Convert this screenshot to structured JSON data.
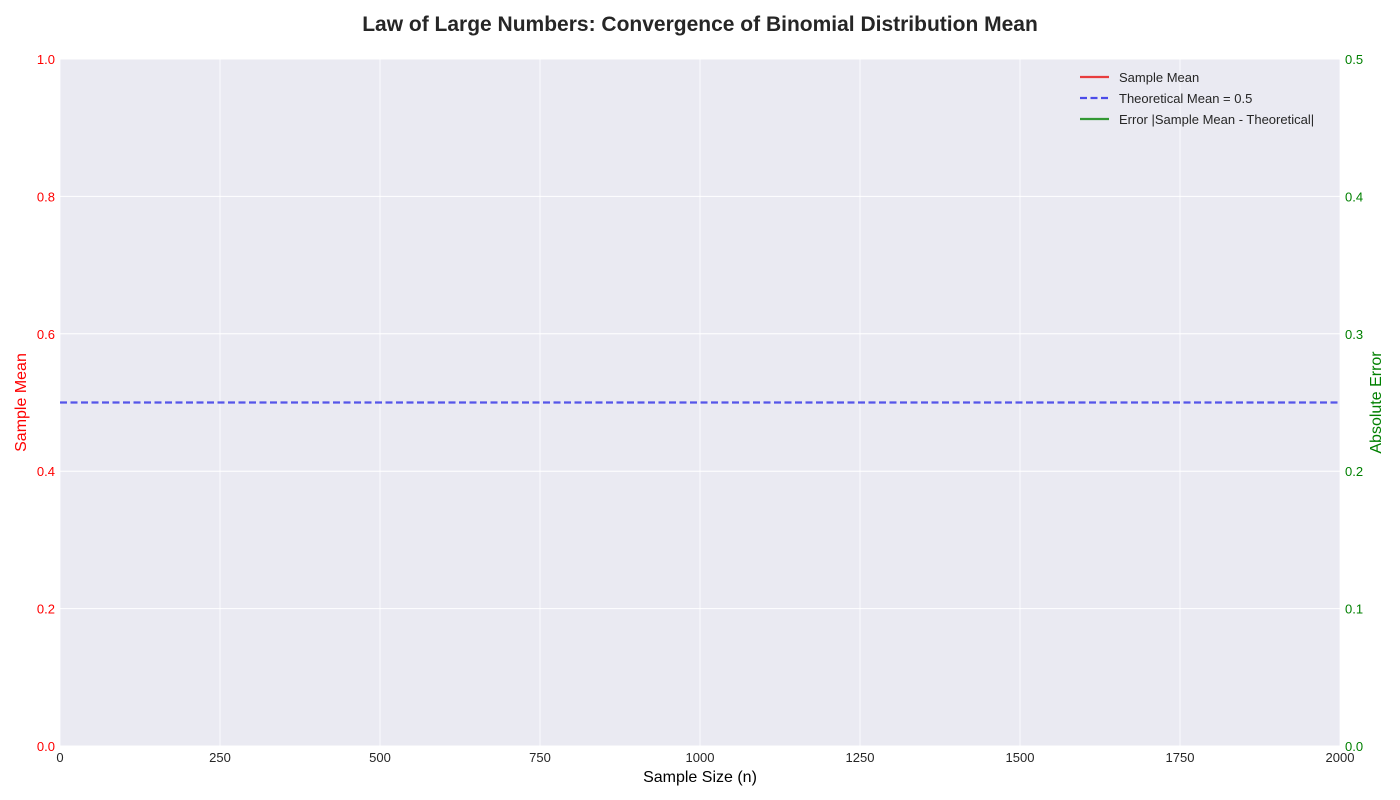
{
  "chart_data": {
    "type": "line",
    "title": "Law of Large Numbers: Convergence of Binomial Distribution Mean",
    "xlabel": "Sample Size (n)",
    "ylabel": "Sample Mean",
    "y2label": "Absolute Error",
    "xlim": [
      0,
      2000
    ],
    "ylim": [
      0,
      1.0
    ],
    "y2lim": [
      0,
      0.5
    ],
    "xticks": [
      "0",
      "250",
      "500",
      "750",
      "1000",
      "1250",
      "1500",
      "1750",
      "2000"
    ],
    "xtick_values": [
      0,
      250,
      500,
      750,
      1000,
      1250,
      1500,
      1750,
      2000
    ],
    "yticks": [
      "0.0",
      "0.2",
      "0.4",
      "0.6",
      "0.8",
      "1.0"
    ],
    "ytick_values": [
      0,
      0.2,
      0.4,
      0.6,
      0.8,
      1.0
    ],
    "y2ticks": [
      "0.0",
      "0.1",
      "0.2",
      "0.3",
      "0.4",
      "0.5"
    ],
    "y2tick_values": [
      0,
      0.1,
      0.2,
      0.3,
      0.4,
      0.5
    ],
    "grid": true,
    "legend_position": "top-right",
    "series": [
      {
        "name": "Sample Mean",
        "axis": "left",
        "color": "#e82a2a",
        "style": "solid",
        "x": [],
        "y": []
      },
      {
        "name": "Theoretical Mean = 0.5",
        "axis": "left",
        "color": "#3b3be8",
        "style": "dashed",
        "x": [
          0,
          2000
        ],
        "y": [
          0.5,
          0.5
        ]
      },
      {
        "name": "Error |Sample Mean - Theoretical|",
        "axis": "right",
        "color": "#1f8f1f",
        "style": "solid",
        "x": [],
        "y": []
      }
    ],
    "colors": {
      "plot_background": "#eaeaf2",
      "grid": "#ffffff",
      "left_axis": "#ff0000",
      "right_axis": "#008000",
      "text": "#262626"
    }
  }
}
